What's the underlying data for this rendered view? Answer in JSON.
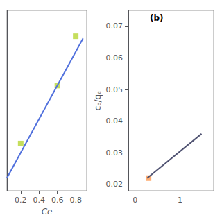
{
  "chart_data": [
    {
      "type": "scatter",
      "xlabel": "Ce",
      "xlim": [
        0.05,
        0.92
      ],
      "ylim": [
        0.33,
        0.75
      ],
      "xticks": [
        0.2,
        0.4,
        0.6,
        0.8
      ],
      "yticks": [],
      "tick_labels": "x",
      "grid": false,
      "series": [
        {
          "type": "line",
          "x": [
            0.05,
            0.88
          ],
          "values": [
            0.36,
            0.685
          ]
        },
        {
          "type": "scatter",
          "marker": "square",
          "x": [
            0.2,
            0.6,
            0.8
          ],
          "values": [
            0.44,
            0.575,
            0.69
          ]
        }
      ]
    },
    {
      "type": "scatter",
      "ylabel": "cₑ/qₑ",
      "annotation": "(b)",
      "xlim": [
        -0.15,
        1.75
      ],
      "ylim": [
        0.018,
        0.075
      ],
      "xticks": [
        0,
        1
      ],
      "yticks": [
        0.02,
        0.03,
        0.04,
        0.05,
        0.06,
        0.07
      ],
      "grid": false,
      "series": [
        {
          "type": "line",
          "x": [
            0.27,
            1.48
          ],
          "values": [
            0.022,
            0.036
          ]
        },
        {
          "type": "scatter",
          "marker": "square",
          "x": [
            0.3
          ],
          "values": [
            0.022
          ]
        }
      ]
    }
  ]
}
